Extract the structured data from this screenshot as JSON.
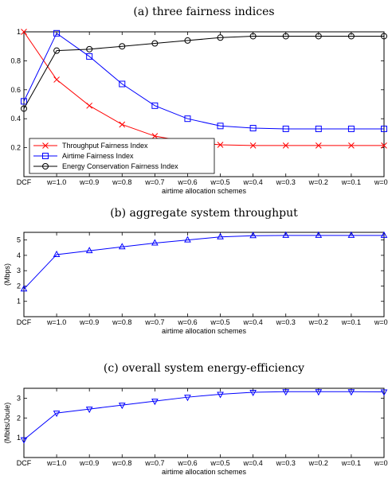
{
  "chart_data": [
    {
      "type": "line",
      "title": "(a) three fairness indices",
      "xlabel": "airtime allocation schemes",
      "ylabel": "",
      "categories": [
        "DCF",
        "w=1.0",
        "w=0.9",
        "w=0.8",
        "w=0.7",
        "w=0.6",
        "w=0.5",
        "w=0.4",
        "w=0.3",
        "w=0.2",
        "w=0.1",
        "w=0.0"
      ],
      "ylim": [
        0,
        1
      ],
      "yticks": [
        "0.2",
        "0.4",
        "0.6",
        "0.8",
        "1"
      ],
      "ytick_values": [
        0.2,
        0.4,
        0.6,
        0.8,
        1.0
      ],
      "grid": false,
      "legend_position": "bottom-left",
      "series": [
        {
          "name": "Throughput Fairness Index",
          "color": "#ff0000",
          "marker": "x",
          "values": [
            1.0,
            0.67,
            0.49,
            0.36,
            0.28,
            0.24,
            0.22,
            0.215,
            0.215,
            0.215,
            0.215,
            0.215
          ]
        },
        {
          "name": "Airtime Fairness Index",
          "color": "#0000ff",
          "marker": "square",
          "values": [
            0.52,
            0.99,
            0.83,
            0.64,
            0.49,
            0.4,
            0.35,
            0.335,
            0.33,
            0.33,
            0.33,
            0.33
          ]
        },
        {
          "name": "Energy Conservation Fairness Index",
          "color": "#000000",
          "marker": "circle",
          "values": [
            0.47,
            0.87,
            0.88,
            0.9,
            0.92,
            0.94,
            0.96,
            0.97,
            0.97,
            0.97,
            0.97,
            0.97
          ]
        }
      ]
    },
    {
      "type": "line",
      "title": "(b) aggregate system throughput",
      "xlabel": "airtime allocation schemes",
      "ylabel": "(Mbps)",
      "categories": [
        "DCF",
        "w=1.0",
        "w=0.9",
        "w=0.8",
        "w=0.7",
        "w=0.6",
        "w=0.5",
        "w=0.4",
        "w=0.3",
        "w=0.2",
        "w=0.1",
        "w=0.0"
      ],
      "ylim": [
        0,
        5.5
      ],
      "yticks": [
        "1",
        "2",
        "3",
        "4",
        "5"
      ],
      "ytick_values": [
        1,
        2,
        3,
        4,
        5
      ],
      "grid": false,
      "series": [
        {
          "name": "",
          "color": "#0000ff",
          "marker": "triangle-up",
          "values": [
            1.8,
            4.05,
            4.3,
            4.55,
            4.8,
            5.0,
            5.2,
            5.28,
            5.3,
            5.3,
            5.3,
            5.3
          ]
        }
      ]
    },
    {
      "type": "line",
      "title": "(c) overall system energy-efficiency",
      "xlabel": "airtime allocation schemes",
      "ylabel": "(Mbits/Joule)",
      "categories": [
        "DCF",
        "w=1.0",
        "w=0.9",
        "w=0.8",
        "w=0.7",
        "w=0.6",
        "w=0.5",
        "w=0.4",
        "w=0.3",
        "w=0.2",
        "w=0.1",
        "w=0.0"
      ],
      "ylim": [
        0,
        3.5
      ],
      "yticks": [
        "1",
        "2",
        "3"
      ],
      "ytick_values": [
        1,
        2,
        3
      ],
      "grid": false,
      "series": [
        {
          "name": "",
          "color": "#0000ff",
          "marker": "triangle-down",
          "values": [
            0.9,
            2.25,
            2.45,
            2.65,
            2.85,
            3.05,
            3.2,
            3.3,
            3.33,
            3.33,
            3.33,
            3.32
          ]
        }
      ]
    }
  ]
}
